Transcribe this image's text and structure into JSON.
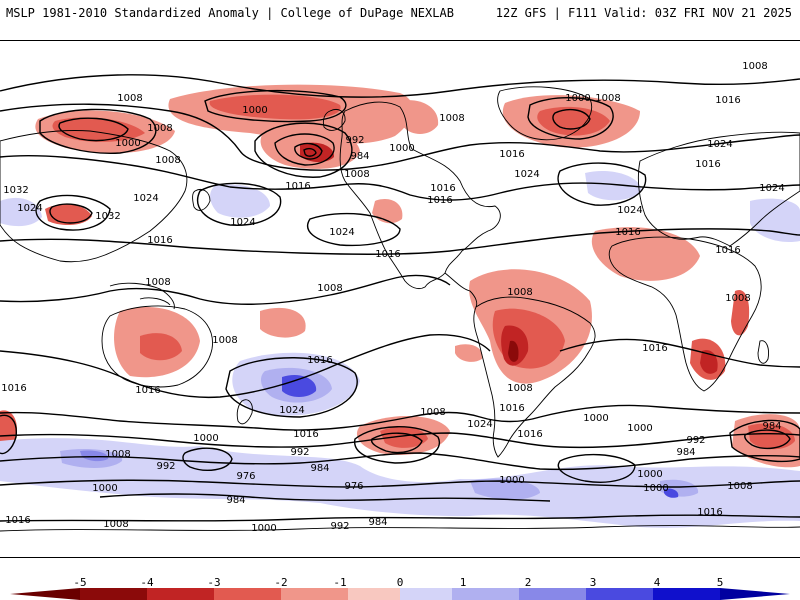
{
  "header": {
    "left_title": "MSLP 1981-2010 Standardized Anomaly | College of DuPage NEXLAB",
    "right_title": "12Z GFS | F111 Valid: 03Z FRI NOV 21 2025"
  },
  "map": {
    "projection": "global cylindrical, Pacific-centered",
    "pressure_labels": [
      "1008",
      "1008",
      "1000",
      "1000",
      "1008",
      "992",
      "984",
      "1008",
      "1000",
      "1008",
      "1000",
      "1008",
      "1008",
      "1016",
      "1016",
      "1016",
      "1016",
      "1024",
      "1016",
      "1024",
      "1024",
      "1024",
      "1032",
      "1024",
      "1032",
      "1024",
      "1016",
      "1024",
      "1016",
      "1024",
      "1016",
      "1008",
      "1008",
      "1008",
      "1008",
      "1016",
      "1008",
      "1016",
      "1016",
      "1016",
      "1016",
      "1024",
      "1016",
      "1024",
      "1016",
      "1008",
      "1016",
      "1008",
      "1000",
      "992",
      "984",
      "976",
      "1000",
      "1008",
      "1000",
      "992",
      "984",
      "984",
      "1000",
      "992",
      "984",
      "976",
      "1000",
      "1000",
      "1008",
      "1008",
      "1000",
      "992",
      "984",
      "1000",
      "1016",
      "1016",
      "1016"
    ],
    "colors": {
      "neg5": "#8b0a0a",
      "neg4": "#c12424",
      "neg3": "#e25a50",
      "neg2": "#f0968a",
      "neg1": "#f8c8c0",
      "pos1": "#d4d4f8",
      "pos2": "#b0b0f0",
      "pos3": "#8888e8",
      "pos4": "#4a4ae0",
      "pos5": "#1010cc",
      "contour": "#000000",
      "coast": "#000000"
    }
  },
  "colorbar": {
    "ticks": [
      "-5",
      "-4",
      "-3",
      "-2",
      "-1",
      "0",
      "1",
      "2",
      "3",
      "4",
      "5"
    ]
  }
}
